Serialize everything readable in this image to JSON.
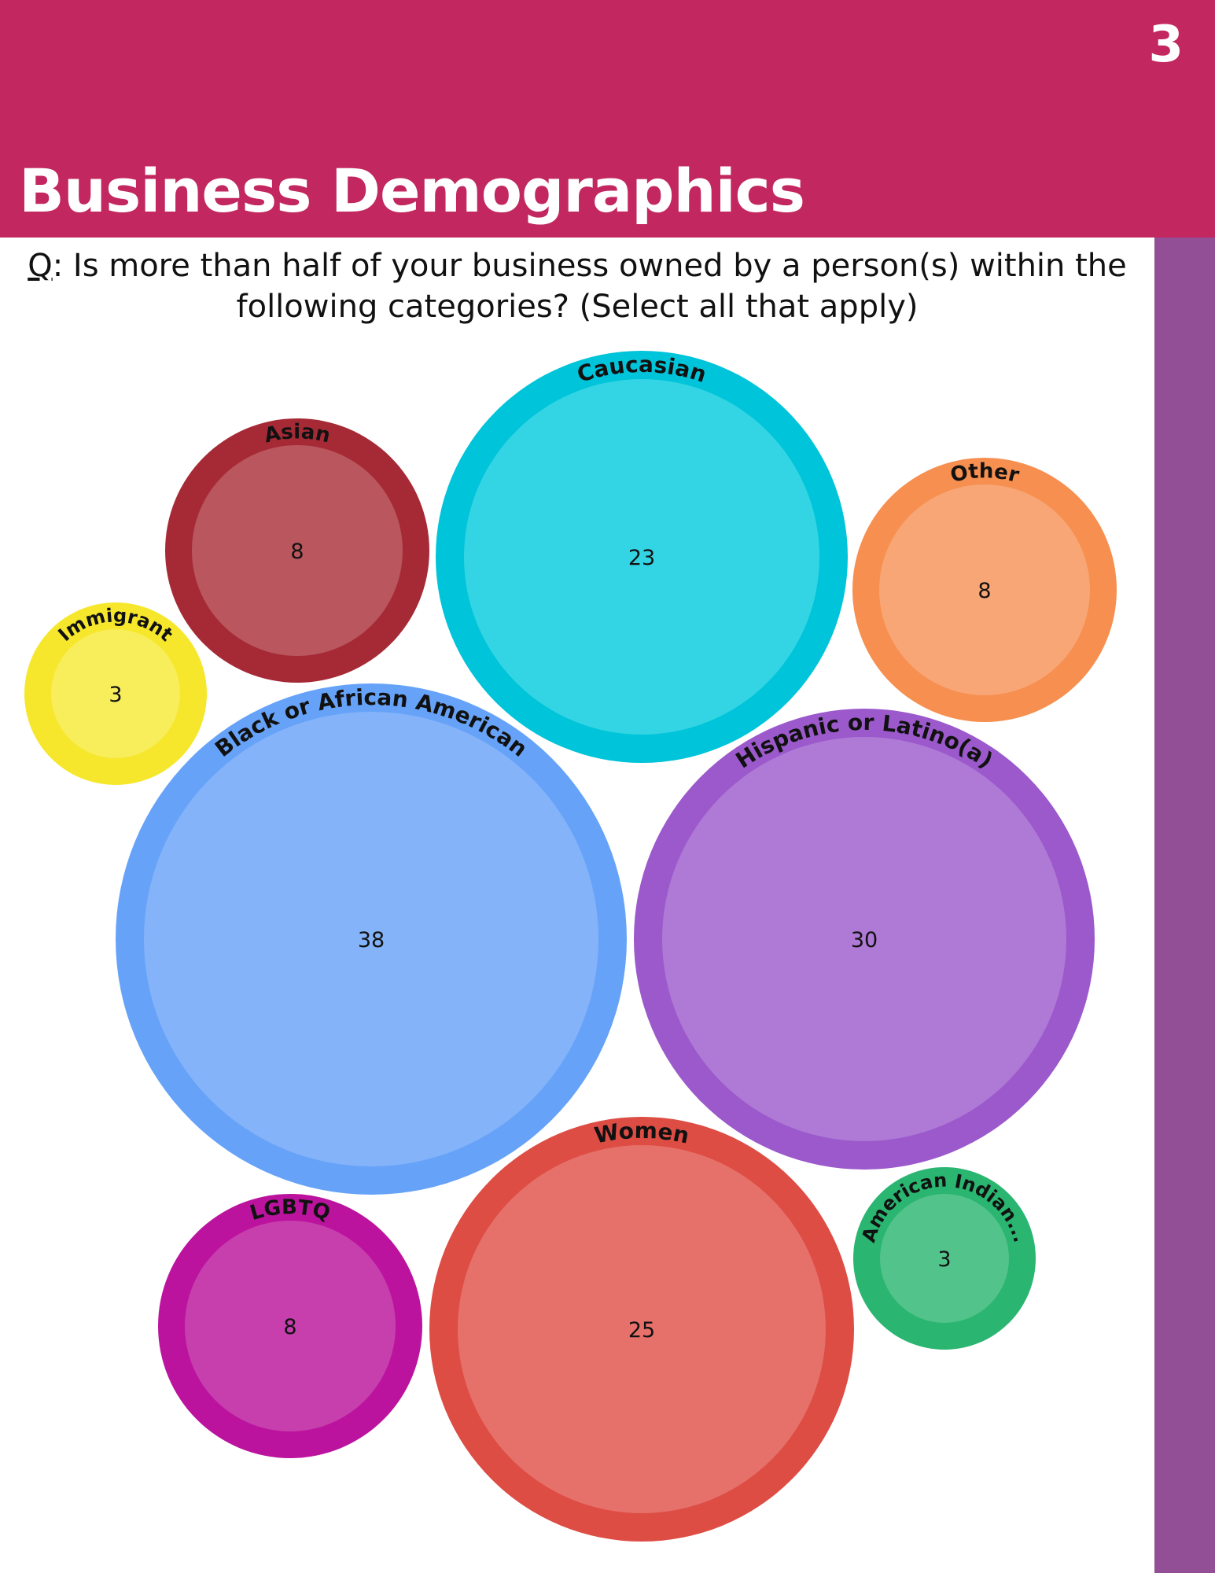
{
  "page": {
    "number": "3",
    "title": "Business Demographics",
    "question_prefix": "Q",
    "question_text": ": Is more than half of your business owned by a person(s) within the following categories? (Select all that apply)"
  },
  "colors": {
    "header": "#c2275f",
    "side_bar": "#934f96"
  },
  "chart_data": {
    "type": "bubble",
    "title": "",
    "series": [
      {
        "label": "Asian",
        "value": 8,
        "outer": "#a62a36",
        "inner": "#b9565e"
      },
      {
        "label": "Caucasian",
        "value": 23,
        "outer": "#00c4d9",
        "inner": "#33d5e4"
      },
      {
        "label": "Other",
        "value": 8,
        "outer": "#f68f4f",
        "inner": "#f8a675"
      },
      {
        "label": "Immigrant",
        "value": 3,
        "outer": "#f6e72c",
        "inner": "#f8ed5a"
      },
      {
        "label": "Black or African American",
        "value": 38,
        "outer": "#66a3f8",
        "inner": "#84b3f9"
      },
      {
        "label": "Hispanic or Latino(a)",
        "value": 30,
        "outer": "#9b59cc",
        "inner": "#af79d6"
      },
      {
        "label": "Women",
        "value": 25,
        "outer": "#dd4d44",
        "inner": "#e6706a"
      },
      {
        "label": "American Indian...",
        "value": 3,
        "outer": "#2ab571",
        "inner": "#53c38c"
      },
      {
        "label": "LGBTQ",
        "value": 8,
        "outer": "#bb139e",
        "inner": "#c73fad"
      }
    ]
  }
}
